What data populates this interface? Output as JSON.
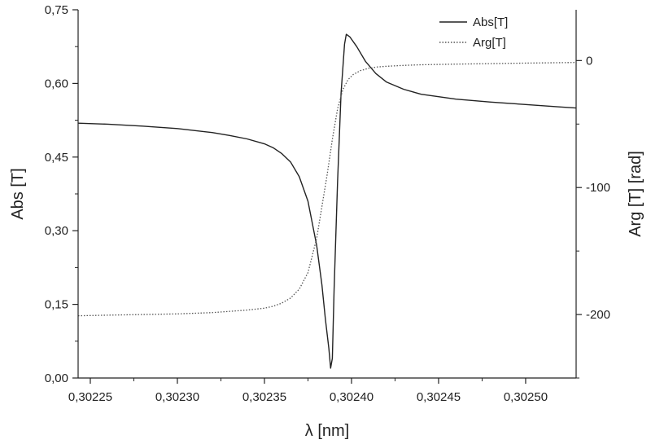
{
  "chart_data": {
    "type": "line",
    "title": "",
    "xlabel": "λ [nm]",
    "ylabel": "Abs [T]",
    "y2label": "Arg [T] [rad]",
    "xlim": [
      0.302243,
      0.302529
    ],
    "ylim": [
      0.0,
      0.75
    ],
    "y2lim": [
      -250,
      40
    ],
    "xticks": [
      0.30225,
      0.3023,
      0.30235,
      0.3024,
      0.30245,
      0.3025
    ],
    "xtick_labels": [
      "0,30225",
      "0,30230",
      "0,30235",
      "0,30240",
      "0,30245",
      "0,30250"
    ],
    "yticks": [
      0.0,
      0.15,
      0.3,
      0.45,
      0.6,
      0.75
    ],
    "ytick_labels": [
      "0,00",
      "0,15",
      "0,30",
      "0,45",
      "0,60",
      "0,75"
    ],
    "y2ticks": [
      -200,
      -100,
      0
    ],
    "y2tick_labels": [
      "-200",
      "-100",
      "0"
    ],
    "grid": false,
    "legend_position": "top-right",
    "series": [
      {
        "name": "Abs[T]",
        "axis": "left",
        "style": "solid",
        "color": "#222222",
        "x": [
          0.302243,
          0.30226,
          0.30228,
          0.3023,
          0.30232,
          0.30233,
          0.30234,
          0.30235,
          0.302355,
          0.30236,
          0.302365,
          0.30237,
          0.302375,
          0.30238,
          0.302383,
          0.302385,
          0.302387,
          0.302388,
          0.302389,
          0.30239,
          0.302392,
          0.302394,
          0.302396,
          0.302397,
          0.302399,
          0.302403,
          0.302408,
          0.302414,
          0.30242,
          0.30243,
          0.30244,
          0.30246,
          0.30248,
          0.3025,
          0.30252,
          0.302529
        ],
        "y": [
          0.519,
          0.517,
          0.513,
          0.508,
          0.5,
          0.494,
          0.487,
          0.477,
          0.469,
          0.457,
          0.44,
          0.41,
          0.36,
          0.27,
          0.19,
          0.12,
          0.06,
          0.02,
          0.04,
          0.18,
          0.4,
          0.58,
          0.68,
          0.7,
          0.695,
          0.675,
          0.645,
          0.62,
          0.603,
          0.588,
          0.578,
          0.568,
          0.562,
          0.557,
          0.552,
          0.55
        ],
        "y_units": "Abs [T]"
      },
      {
        "name": "Arg[T]",
        "axis": "right",
        "style": "dotted",
        "color": "#555555",
        "x": [
          0.302243,
          0.30226,
          0.30228,
          0.3023,
          0.30232,
          0.30234,
          0.30235,
          0.302355,
          0.30236,
          0.302365,
          0.30237,
          0.302375,
          0.30238,
          0.302383,
          0.302386,
          0.302389,
          0.302392,
          0.302395,
          0.302398,
          0.302401,
          0.302405,
          0.30241,
          0.302415,
          0.30242,
          0.30243,
          0.30244,
          0.30246,
          0.30248,
          0.3025,
          0.302529
        ],
        "y": [
          -201,
          -200.5,
          -200,
          -199.5,
          -198.5,
          -196.5,
          -195,
          -193.5,
          -191,
          -187,
          -180,
          -167,
          -140,
          -115,
          -90,
          -62,
          -38,
          -23,
          -15,
          -11,
          -8,
          -6,
          -5,
          -4.5,
          -3.8,
          -3.3,
          -2.8,
          -2.4,
          -2,
          -1.5
        ],
        "y_units": "Arg [T] [rad]"
      }
    ]
  }
}
